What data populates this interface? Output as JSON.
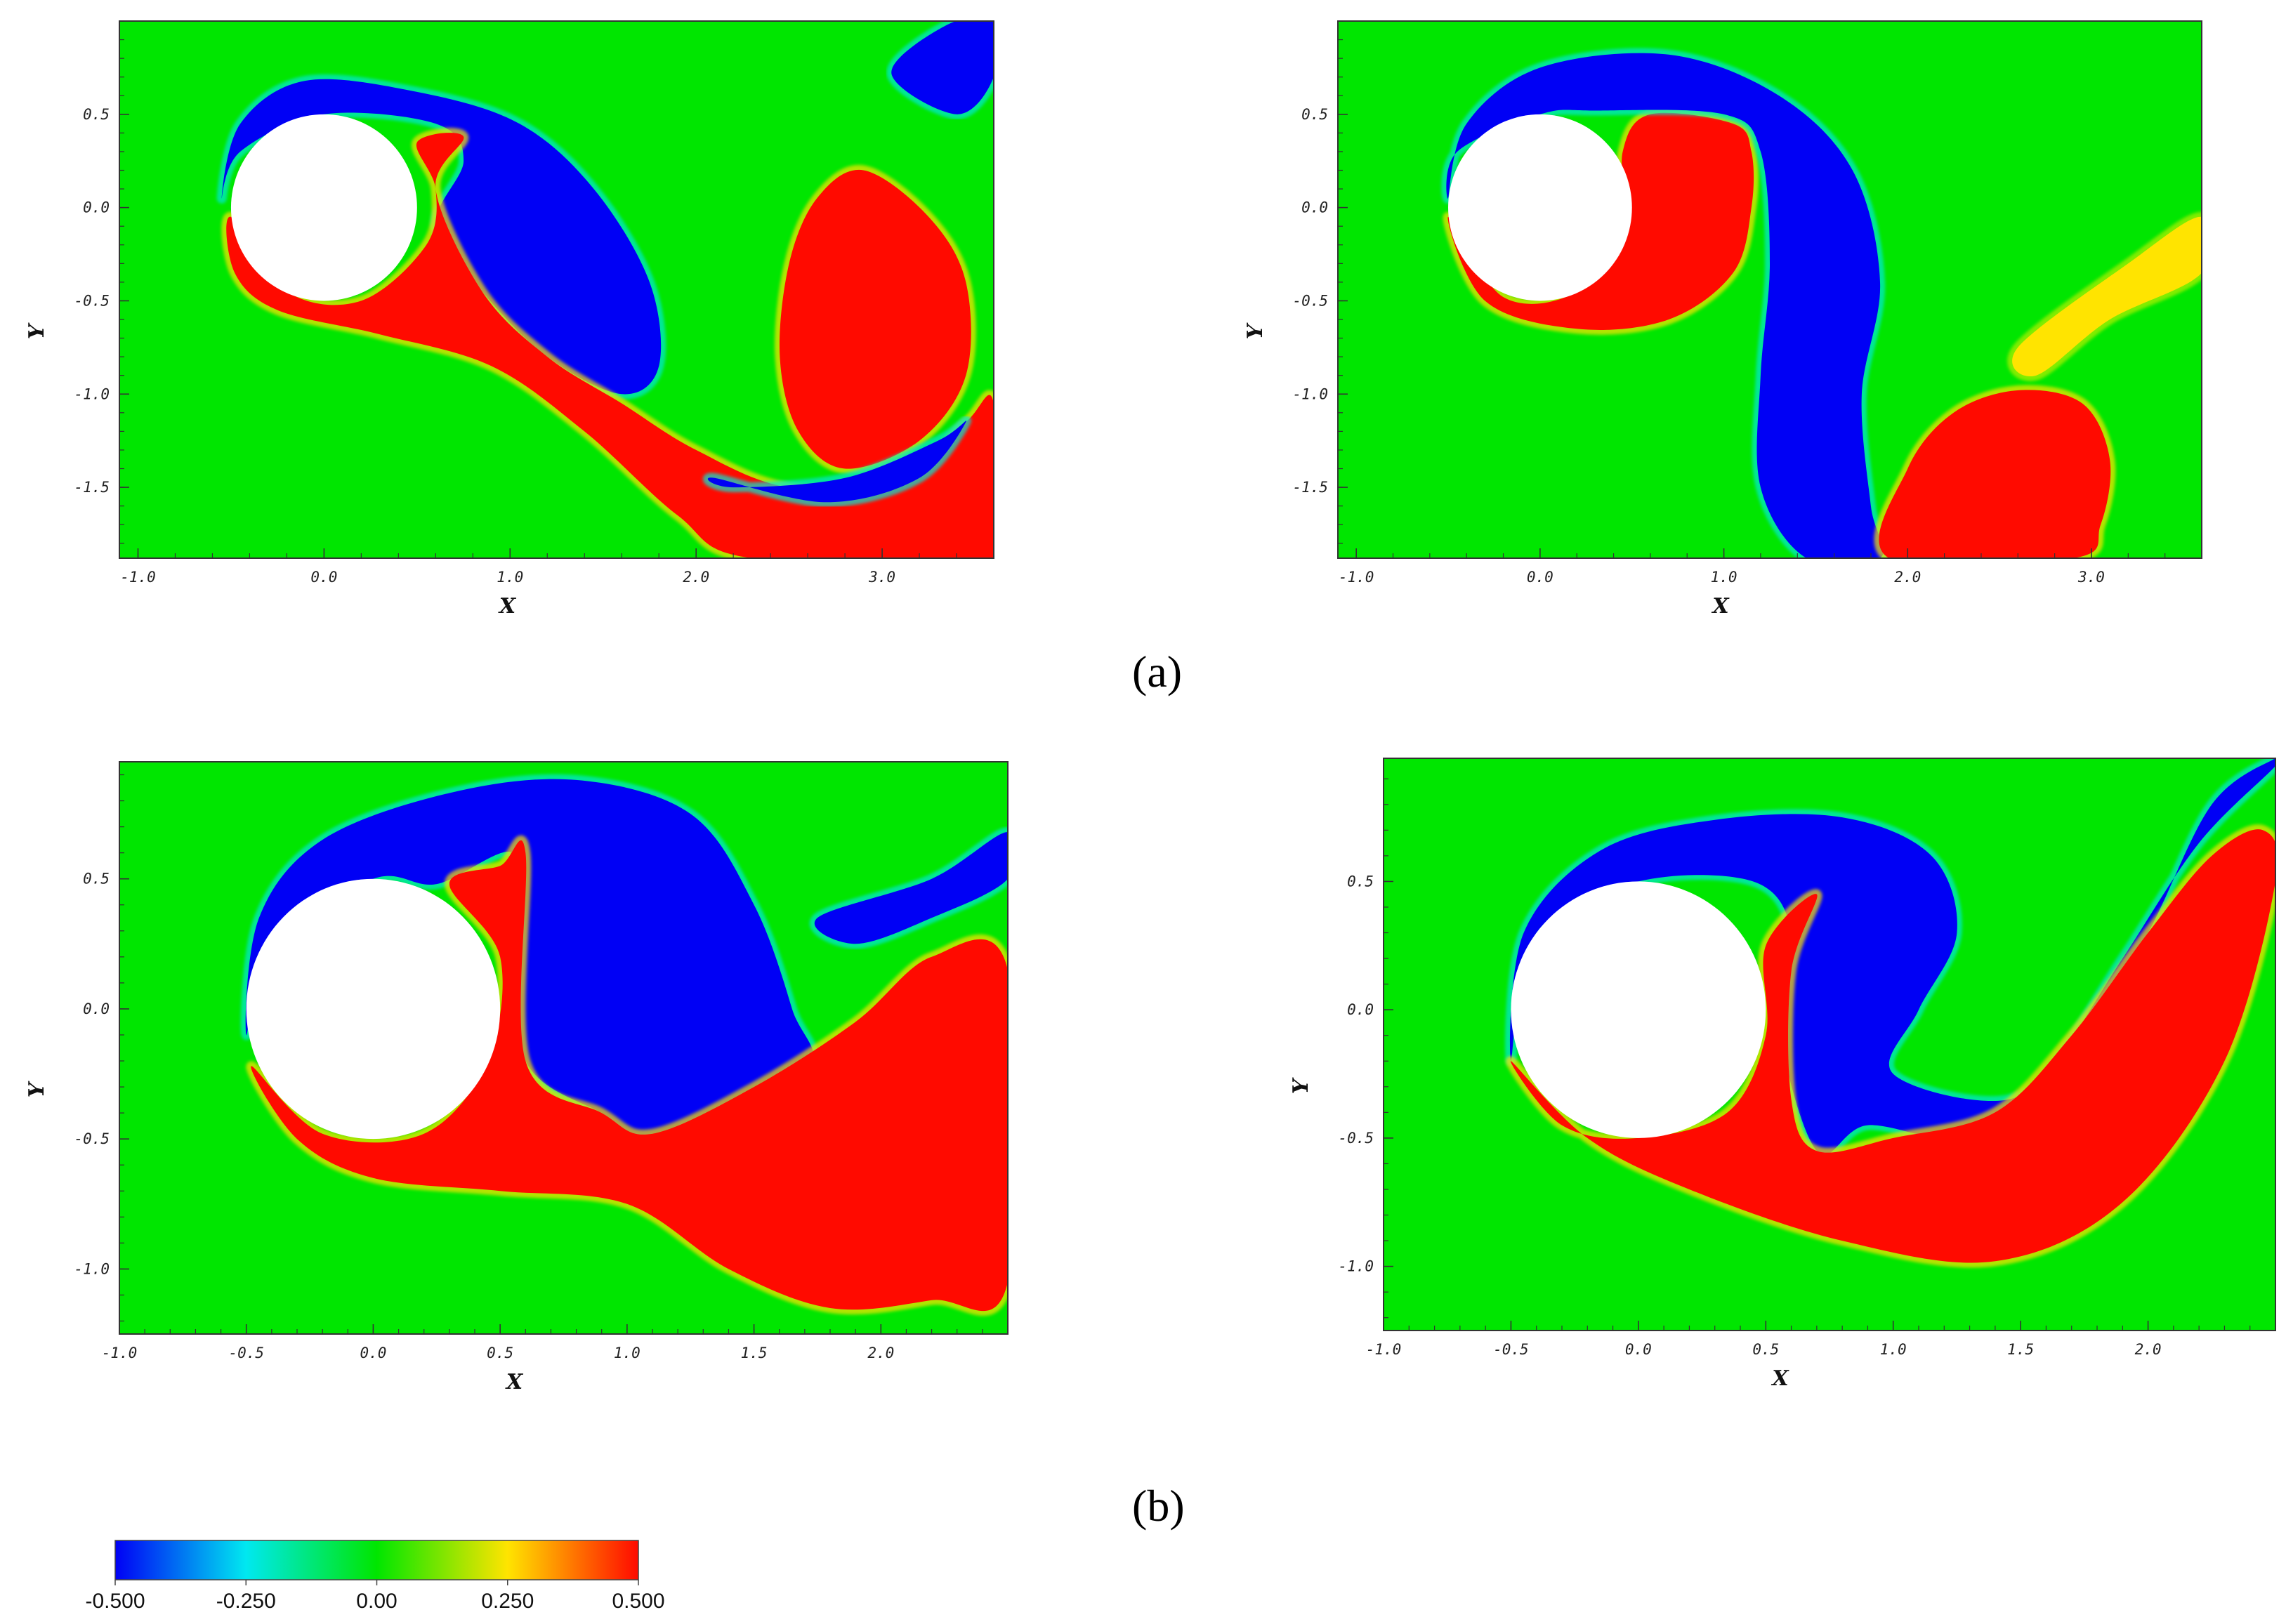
{
  "colors": {
    "green": "#00e600",
    "blue": "#0000f5",
    "red": "#ff0a00",
    "cyan": "#00e8d8",
    "yellow": "#ffe400",
    "frame": "#333333"
  },
  "captions": {
    "a": "(a)",
    "b": "(b)"
  },
  "colorbar": {
    "min": -0.5,
    "max": 0.5,
    "tick_labels": [
      "-0.500",
      "-0.250",
      "0.00",
      "0.250",
      "0.500"
    ],
    "tick_values": [
      -0.5,
      -0.25,
      0.0,
      0.25,
      0.5
    ],
    "colormap": [
      "#0000f5",
      "#00e8f0",
      "#00e600",
      "#ffe400",
      "#ff0a00"
    ]
  },
  "chart_data": [
    {
      "type": "heatmap",
      "panel": "a-left",
      "xlabel": "X",
      "ylabel": "Y",
      "xlim": [
        -1.1,
        3.6
      ],
      "ylim": [
        -1.88,
        1.0
      ],
      "x_ticks": [
        "-1.0",
        "0.0",
        "1.0",
        "2.0",
        "3.0"
      ],
      "x_tick_values": [
        -1.0,
        0.0,
        1.0,
        2.0,
        3.0
      ],
      "y_ticks": [
        "0.5",
        "0.0",
        "-0.5",
        "-1.0",
        "-1.5"
      ],
      "y_tick_values": [
        0.5,
        0.0,
        -0.5,
        -1.0,
        -1.5
      ],
      "cylinder": {
        "cx": 0.0,
        "cy": 0.0,
        "r": 0.5
      },
      "regions": [
        {
          "name": "negative-vortex-upper",
          "sign": "blue",
          "points": [
            [
              -0.55,
              0.05
            ],
            [
              -0.45,
              0.45
            ],
            [
              -0.1,
              0.68
            ],
            [
              0.5,
              0.62
            ],
            [
              1.05,
              0.45
            ],
            [
              1.45,
              0.1
            ],
            [
              1.75,
              -0.4
            ],
            [
              1.8,
              -0.85
            ],
            [
              1.6,
              -1.0
            ],
            [
              1.2,
              -0.8
            ],
            [
              0.85,
              -0.45
            ],
            [
              0.6,
              -0.1
            ],
            [
              0.75,
              0.25
            ],
            [
              0.6,
              0.45
            ],
            [
              0.0,
              0.5
            ],
            [
              -0.45,
              0.3
            ]
          ]
        },
        {
          "name": "positive-shear-layer-lower",
          "sign": "red",
          "points": [
            [
              -0.5,
              -0.05
            ],
            [
              -0.2,
              -0.45
            ],
            [
              0.2,
              -0.5
            ],
            [
              0.55,
              -0.2
            ],
            [
              0.6,
              0.1
            ],
            [
              0.5,
              0.35
            ],
            [
              0.75,
              0.38
            ],
            [
              0.6,
              0.1
            ],
            [
              0.85,
              -0.45
            ],
            [
              1.2,
              -0.8
            ],
            [
              1.6,
              -1.05
            ],
            [
              2.0,
              -1.3
            ],
            [
              2.5,
              -1.5
            ],
            [
              3.1,
              -1.45
            ],
            [
              3.45,
              -1.15
            ],
            [
              3.6,
              -1.05
            ],
            [
              3.6,
              -1.88
            ],
            [
              2.3,
              -1.88
            ],
            [
              1.9,
              -1.65
            ],
            [
              1.4,
              -1.2
            ],
            [
              0.9,
              -0.85
            ],
            [
              0.3,
              -0.68
            ],
            [
              -0.25,
              -0.55
            ],
            [
              -0.48,
              -0.35
            ]
          ]
        },
        {
          "name": "positive-vortex-shed",
          "sign": "red",
          "points": [
            [
              2.5,
              -0.3
            ],
            [
              2.65,
              0.05
            ],
            [
              2.9,
              0.2
            ],
            [
              3.25,
              -0.05
            ],
            [
              3.45,
              -0.4
            ],
            [
              3.45,
              -0.9
            ],
            [
              3.2,
              -1.25
            ],
            [
              2.8,
              -1.4
            ],
            [
              2.55,
              -1.2
            ],
            [
              2.45,
              -0.8
            ]
          ]
        },
        {
          "name": "negative-wake-arc",
          "sign": "blue",
          "points": [
            [
              2.1,
              -1.45
            ],
            [
              2.7,
              -1.58
            ],
            [
              3.2,
              -1.45
            ],
            [
              3.45,
              -1.15
            ],
            [
              3.3,
              -1.25
            ],
            [
              2.8,
              -1.45
            ],
            [
              2.2,
              -1.5
            ]
          ]
        },
        {
          "name": "negative-wake-tail",
          "sign": "blue",
          "points": [
            [
              3.05,
              0.72
            ],
            [
              3.35,
              0.98
            ],
            [
              3.6,
              1.0
            ],
            [
              3.6,
              0.7
            ],
            [
              3.4,
              0.5
            ]
          ]
        }
      ]
    },
    {
      "type": "heatmap",
      "panel": "a-right",
      "xlabel": "X",
      "ylabel": "Y",
      "xlim": [
        -1.1,
        3.6
      ],
      "ylim": [
        -1.88,
        1.0
      ],
      "x_ticks": [
        "-1.0",
        "0.0",
        "1.0",
        "2.0",
        "3.0"
      ],
      "x_tick_values": [
        -1.0,
        0.0,
        1.0,
        2.0,
        3.0
      ],
      "y_ticks": [
        "0.5",
        "0.0",
        "-0.5",
        "-1.0",
        "-1.5"
      ],
      "y_tick_values": [
        0.5,
        0.0,
        -0.5,
        -1.0,
        -1.5
      ],
      "cylinder": {
        "cx": 0.0,
        "cy": 0.0,
        "r": 0.5
      },
      "regions": [
        {
          "name": "positive-vortex-near",
          "sign": "red",
          "points": [
            [
              -0.5,
              -0.05
            ],
            [
              -0.3,
              -0.5
            ],
            [
              0.2,
              -0.65
            ],
            [
              0.7,
              -0.6
            ],
            [
              1.05,
              -0.35
            ],
            [
              1.15,
              0.0
            ],
            [
              1.15,
              0.3
            ],
            [
              1.05,
              0.45
            ],
            [
              0.6,
              0.5
            ],
            [
              0.45,
              0.3
            ],
            [
              0.45,
              -0.1
            ],
            [
              0.2,
              -0.45
            ],
            [
              -0.2,
              -0.48
            ]
          ]
        },
        {
          "name": "negative-vortex-tongue",
          "sign": "blue",
          "points": [
            [
              -0.5,
              0.05
            ],
            [
              -0.4,
              0.45
            ],
            [
              0.0,
              0.75
            ],
            [
              0.7,
              0.82
            ],
            [
              1.3,
              0.6
            ],
            [
              1.7,
              0.2
            ],
            [
              1.85,
              -0.4
            ],
            [
              1.75,
              -1.0
            ],
            [
              1.8,
              -1.6
            ],
            [
              1.85,
              -1.88
            ],
            [
              1.45,
              -1.88
            ],
            [
              1.2,
              -1.5
            ],
            [
              1.2,
              -0.9
            ],
            [
              1.25,
              -0.3
            ],
            [
              1.2,
              0.3
            ],
            [
              1.0,
              0.5
            ],
            [
              0.3,
              0.52
            ],
            [
              0.0,
              0.5
            ],
            [
              -0.45,
              0.3
            ]
          ]
        },
        {
          "name": "positive-vortex-shed",
          "sign": "red",
          "points": [
            [
              1.9,
              -1.88
            ],
            [
              2.0,
              -1.4
            ],
            [
              2.25,
              -1.1
            ],
            [
              2.6,
              -0.98
            ],
            [
              2.95,
              -1.05
            ],
            [
              3.1,
              -1.35
            ],
            [
              3.05,
              -1.7
            ],
            [
              2.9,
              -1.88
            ]
          ]
        },
        {
          "name": "positive-wake-tail",
          "sign": "yellow",
          "points": [
            [
              2.6,
              -0.75
            ],
            [
              3.2,
              -0.3
            ],
            [
              3.6,
              -0.05
            ],
            [
              3.6,
              -0.35
            ],
            [
              3.1,
              -0.6
            ],
            [
              2.7,
              -0.9
            ]
          ]
        }
      ]
    },
    {
      "type": "heatmap",
      "panel": "b-left",
      "xlabel": "X",
      "ylabel": "Y",
      "xlim": [
        -1.0,
        2.5
      ],
      "ylim": [
        -1.25,
        0.95
      ],
      "x_ticks": [
        "-1.0",
        "-0.5",
        "0.0",
        "0.5",
        "1.0",
        "1.5",
        "2.0"
      ],
      "x_tick_values": [
        -1.0,
        -0.5,
        0.0,
        0.5,
        1.0,
        1.5,
        2.0
      ],
      "y_ticks": [
        "0.5",
        "0.0",
        "-0.5",
        "-1.0"
      ],
      "y_tick_values": [
        0.5,
        0.0,
        -0.5,
        -1.0
      ],
      "cylinder": {
        "cx": 0.0,
        "cy": 0.0,
        "r": 0.5
      },
      "regions": [
        {
          "name": "negative-vortex-upper",
          "sign": "blue",
          "points": [
            [
              -0.5,
              -0.1
            ],
            [
              -0.45,
              0.35
            ],
            [
              -0.2,
              0.65
            ],
            [
              0.3,
              0.83
            ],
            [
              0.8,
              0.88
            ],
            [
              1.25,
              0.75
            ],
            [
              1.5,
              0.4
            ],
            [
              1.65,
              0.0
            ],
            [
              1.7,
              -0.25
            ],
            [
              1.1,
              -0.48
            ],
            [
              0.9,
              -0.4
            ],
            [
              0.6,
              -0.2
            ],
            [
              0.55,
              0.3
            ],
            [
              0.55,
              0.6
            ],
            [
              0.25,
              0.48
            ],
            [
              0.0,
              0.5
            ],
            [
              -0.4,
              0.25
            ]
          ]
        },
        {
          "name": "positive-shear-layer",
          "sign": "red",
          "points": [
            [
              -0.48,
              -0.22
            ],
            [
              -0.2,
              -0.48
            ],
            [
              0.2,
              -0.48
            ],
            [
              0.45,
              -0.2
            ],
            [
              0.5,
              0.2
            ],
            [
              0.3,
              0.48
            ],
            [
              0.5,
              0.55
            ],
            [
              0.6,
              0.6
            ],
            [
              0.6,
              -0.2
            ],
            [
              0.9,
              -0.4
            ],
            [
              1.1,
              -0.48
            ],
            [
              1.5,
              -0.3
            ],
            [
              1.9,
              -0.05
            ],
            [
              2.2,
              0.2
            ],
            [
              2.5,
              0.15
            ],
            [
              2.5,
              -1.05
            ],
            [
              2.2,
              -1.12
            ],
            [
              1.8,
              -1.15
            ],
            [
              1.4,
              -1.0
            ],
            [
              1.0,
              -0.75
            ],
            [
              0.5,
              -0.7
            ],
            [
              0.0,
              -0.65
            ],
            [
              -0.3,
              -0.5
            ]
          ]
        },
        {
          "name": "negative-wake-tail",
          "sign": "blue",
          "points": [
            [
              1.75,
              0.35
            ],
            [
              2.2,
              0.5
            ],
            [
              2.5,
              0.68
            ],
            [
              2.5,
              0.5
            ],
            [
              2.2,
              0.35
            ],
            [
              1.9,
              0.25
            ]
          ]
        }
      ]
    },
    {
      "type": "heatmap",
      "panel": "b-right",
      "xlabel": "X",
      "ylabel": "Y",
      "xlim": [
        -1.0,
        2.5
      ],
      "ylim": [
        -1.25,
        0.98
      ],
      "x_ticks": [
        "-1.0",
        "-0.5",
        "0.0",
        "0.5",
        "1.0",
        "1.5",
        "2.0"
      ],
      "x_tick_values": [
        -1.0,
        -0.5,
        0.0,
        0.5,
        1.0,
        1.5,
        2.0
      ],
      "y_ticks": [
        "0.5",
        "0.0",
        "-0.5",
        "-1.0"
      ],
      "y_tick_values": [
        0.5,
        0.0,
        -0.5,
        -1.0
      ],
      "cylinder": {
        "cx": 0.0,
        "cy": 0.0,
        "r": 0.5
      },
      "regions": [
        {
          "name": "negative-vortex-upper",
          "sign": "blue",
          "points": [
            [
              -0.5,
              -0.2
            ],
            [
              -0.45,
              0.3
            ],
            [
              -0.15,
              0.62
            ],
            [
              0.3,
              0.74
            ],
            [
              0.8,
              0.75
            ],
            [
              1.15,
              0.6
            ],
            [
              1.25,
              0.3
            ],
            [
              1.1,
              0.0
            ],
            [
              1.0,
              -0.25
            ],
            [
              1.45,
              -0.35
            ],
            [
              1.75,
              -0.1
            ],
            [
              2.0,
              0.3
            ],
            [
              2.25,
              0.8
            ],
            [
              2.5,
              0.98
            ],
            [
              2.5,
              0.95
            ],
            [
              2.2,
              0.65
            ],
            [
              1.9,
              0.2
            ],
            [
              1.6,
              -0.25
            ],
            [
              1.3,
              -0.5
            ],
            [
              0.9,
              -0.45
            ],
            [
              0.7,
              -0.55
            ],
            [
              0.55,
              -0.05
            ],
            [
              0.6,
              0.3
            ],
            [
              0.45,
              0.5
            ],
            [
              0.0,
              0.5
            ],
            [
              -0.4,
              0.3
            ]
          ]
        },
        {
          "name": "positive-shear-layer",
          "sign": "red",
          "points": [
            [
              -0.5,
              -0.2
            ],
            [
              -0.3,
              -0.45
            ],
            [
              0.0,
              -0.5
            ],
            [
              0.35,
              -0.4
            ],
            [
              0.5,
              -0.1
            ],
            [
              0.5,
              0.25
            ],
            [
              0.7,
              0.45
            ],
            [
              0.6,
              0.15
            ],
            [
              0.6,
              -0.35
            ],
            [
              0.7,
              -0.55
            ],
            [
              1.0,
              -0.5
            ],
            [
              1.4,
              -0.4
            ],
            [
              1.7,
              -0.1
            ],
            [
              2.0,
              0.3
            ],
            [
              2.25,
              0.6
            ],
            [
              2.45,
              0.7
            ],
            [
              2.5,
              0.5
            ],
            [
              2.3,
              -0.2
            ],
            [
              1.9,
              -0.75
            ],
            [
              1.4,
              -0.98
            ],
            [
              0.8,
              -0.9
            ],
            [
              0.2,
              -0.7
            ],
            [
              -0.2,
              -0.5
            ]
          ]
        }
      ]
    }
  ]
}
